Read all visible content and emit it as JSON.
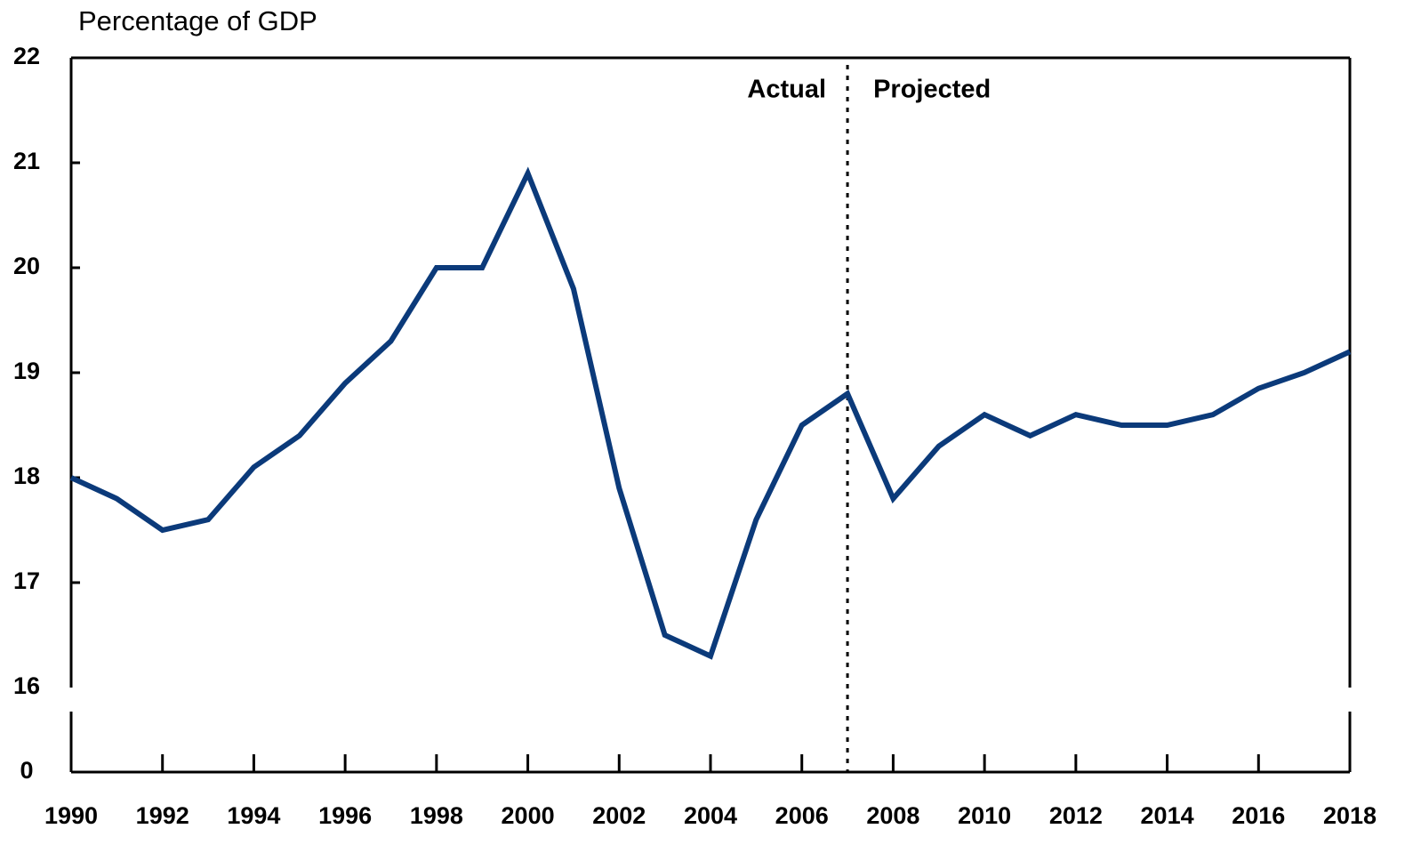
{
  "chart_data": {
    "type": "line",
    "y_axis_label": "Percentage of GDP",
    "annotations": [
      "Actual",
      "Projected"
    ],
    "divider_x": 2007,
    "y_break": true,
    "x": [
      1990,
      1991,
      1992,
      1993,
      1994,
      1995,
      1996,
      1997,
      1998,
      1999,
      2000,
      2001,
      2002,
      2003,
      2004,
      2005,
      2006,
      2007,
      2008,
      2009,
      2010,
      2011,
      2012,
      2013,
      2014,
      2015,
      2016,
      2017,
      2018
    ],
    "series": [
      {
        "color": "#0b3a7a",
        "values": [
          18.0,
          17.8,
          17.5,
          17.6,
          18.1,
          18.4,
          18.9,
          19.3,
          20.0,
          20.0,
          20.9,
          19.8,
          17.9,
          16.5,
          16.3,
          17.6,
          18.5,
          18.8,
          17.8,
          18.3,
          18.6,
          18.4,
          18.6,
          18.5,
          18.5,
          18.6,
          18.85,
          19.0,
          19.2
        ]
      }
    ],
    "xlim": [
      1990,
      2018
    ],
    "xticks": [
      1990,
      1992,
      1994,
      1996,
      1998,
      2000,
      2002,
      2004,
      2006,
      2008,
      2010,
      2012,
      2014,
      2016,
      2018
    ],
    "ylim": [
      16,
      22
    ],
    "yticks": [
      0,
      16,
      17,
      18,
      19,
      20,
      21,
      22
    ]
  }
}
